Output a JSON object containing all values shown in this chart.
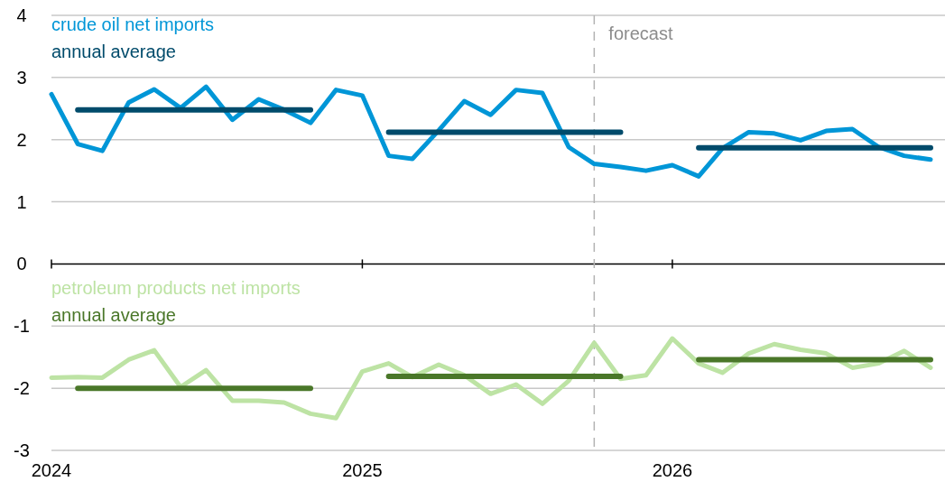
{
  "chart_data": {
    "type": "line",
    "ylim": [
      -3,
      4
    ],
    "yticks": [
      -3,
      -2,
      -1,
      0,
      1,
      2,
      3,
      4
    ],
    "xlim": [
      "2024-01-01",
      "2026-11-18"
    ],
    "xticks": [
      {
        "value": "2024-01-01",
        "label": "2024"
      },
      {
        "value": "2025-01-01",
        "label": "2025"
      },
      {
        "value": "2026-01-01",
        "label": "2026"
      }
    ],
    "grid": "y",
    "legend": "top left",
    "line_style": "solid",
    "marker": "none",
    "ref_lines": [
      {
        "axis": "x",
        "value": "2025-10-01",
        "label": "forecast",
        "color": "#b3b3b3",
        "line_style": "dashed"
      }
    ],
    "series": [
      {
        "name": "crude oil net imports",
        "color": "#0096d7",
        "x": [
          "2024-01",
          "2024-02",
          "2024-03",
          "2024-04",
          "2024-05",
          "2024-06",
          "2024-07",
          "2024-08",
          "2024-09",
          "2024-10",
          "2024-11",
          "2024-12",
          "2025-01",
          "2025-02",
          "2025-03",
          "2025-04",
          "2025-05",
          "2025-06",
          "2025-07",
          "2025-08",
          "2025-09",
          "2025-10",
          "2025-11",
          "2025-12",
          "2026-01",
          "2026-02",
          "2026-03",
          "2026-04",
          "2026-05",
          "2026-06",
          "2026-07",
          "2026-08",
          "2026-09",
          "2026-10",
          "2026-11"
        ],
        "values": [
          2.73,
          1.93,
          1.82,
          2.6,
          2.81,
          2.51,
          2.85,
          2.32,
          2.65,
          2.48,
          2.27,
          2.8,
          2.71,
          1.74,
          1.69,
          2.15,
          2.62,
          2.4,
          2.8,
          2.75,
          1.88,
          1.61,
          1.56,
          1.5,
          1.59,
          1.41,
          1.86,
          2.12,
          2.1,
          1.99,
          2.14,
          2.17,
          1.88,
          1.74,
          1.68
        ]
      },
      {
        "name": "annual average",
        "color": "#004b6b",
        "x": [
          "2024-02",
          "2024-11",
          "2024-12",
          "2025-02",
          "2025-11",
          "2025-12",
          "2026-02",
          "2026-11"
        ],
        "values": [
          2.48,
          2.48,
          null,
          2.12,
          2.12,
          null,
          1.87,
          1.87
        ]
      },
      {
        "name": "petroleum products net imports",
        "color": "#bde3a4",
        "x": [
          "2024-01",
          "2024-02",
          "2024-03",
          "2024-04",
          "2024-05",
          "2024-06",
          "2024-07",
          "2024-08",
          "2024-09",
          "2024-10",
          "2024-11",
          "2024-12",
          "2025-01",
          "2025-02",
          "2025-03",
          "2025-04",
          "2025-05",
          "2025-06",
          "2025-07",
          "2025-08",
          "2025-09",
          "2025-10",
          "2025-11",
          "2025-12",
          "2026-01",
          "2026-02",
          "2026-03",
          "2026-04",
          "2026-05",
          "2026-06",
          "2026-07",
          "2026-08",
          "2026-09",
          "2026-10",
          "2026-11"
        ],
        "values": [
          -1.83,
          -1.82,
          -1.83,
          -1.54,
          -1.39,
          -1.98,
          -1.71,
          -2.2,
          -2.2,
          -2.23,
          -2.41,
          -2.48,
          -1.73,
          -1.6,
          -1.82,
          -1.62,
          -1.79,
          -2.09,
          -1.94,
          -2.25,
          -1.88,
          -1.27,
          -1.85,
          -1.79,
          -1.2,
          -1.6,
          -1.75,
          -1.44,
          -1.29,
          -1.38,
          -1.44,
          -1.67,
          -1.6,
          -1.4,
          -1.67
        ]
      },
      {
        "name": "annual average",
        "color": "#4a7729",
        "x": [
          "2024-02",
          "2024-11",
          "2024-12",
          "2025-02",
          "2025-11",
          "2025-12",
          "2026-02",
          "2026-11"
        ],
        "values": [
          -2.0,
          -2.0,
          null,
          -1.81,
          -1.81,
          null,
          -1.54,
          -1.54
        ]
      }
    ]
  }
}
